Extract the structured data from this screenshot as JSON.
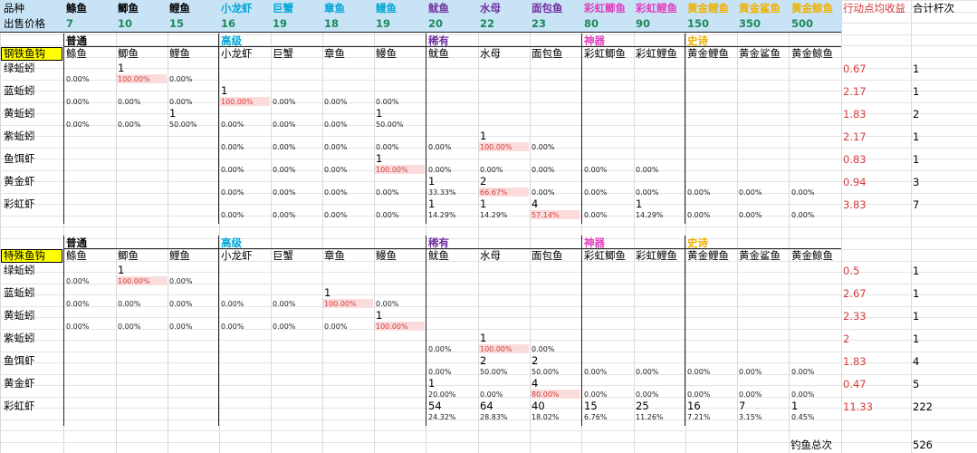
{
  "colors": {
    "normal": "#000000",
    "advanced": "#00a6d6",
    "rare": "#7030a0",
    "mythic": "#e040c0",
    "epic": "#f0b000",
    "price": "#1a8a5a",
    "ratio": "#d43b3b",
    "highlight_blue": "#c8e3f5",
    "highlight_yellow": "#ffff00",
    "pink": "#fbdcdc"
  },
  "header": {
    "row1_label": "品种",
    "row2_label": "出售价格",
    "fish": [
      {
        "name": "鲦鱼",
        "price": "7",
        "tier": "normal"
      },
      {
        "name": "鲫鱼",
        "price": "10",
        "tier": "normal"
      },
      {
        "name": "鲤鱼",
        "price": "15",
        "tier": "normal"
      },
      {
        "name": "小龙虾",
        "price": "16",
        "tier": "advanced"
      },
      {
        "name": "巨蟹",
        "price": "19",
        "tier": "advanced"
      },
      {
        "name": "章鱼",
        "price": "18",
        "tier": "advanced"
      },
      {
        "name": "鳗鱼",
        "price": "19",
        "tier": "advanced"
      },
      {
        "name": "鱿鱼",
        "price": "20",
        "tier": "rare"
      },
      {
        "name": "水母",
        "price": "22",
        "tier": "rare"
      },
      {
        "name": "面包鱼",
        "price": "23",
        "tier": "rare"
      },
      {
        "name": "彩虹鲫鱼",
        "price": "80",
        "tier": "mythic"
      },
      {
        "name": "彩虹鲤鱼",
        "price": "90",
        "tier": "mythic"
      },
      {
        "name": "黄金鲤鱼",
        "price": "150",
        "tier": "epic"
      },
      {
        "name": "黄金鲨鱼",
        "price": "350",
        "tier": "epic"
      },
      {
        "name": "黄金鲸鱼",
        "price": "500",
        "tier": "epic"
      }
    ],
    "avg_label": "行动点均收益",
    "total_label": "合计杆次"
  },
  "tiers": {
    "normal": "普通",
    "advanced": "高级",
    "rare": "稀有",
    "mythic": "神器",
    "epic": "史诗"
  },
  "sections": [
    {
      "hook": "钢铁鱼钩",
      "baits": [
        {
          "name": "绿蚯蚓",
          "ratio": "0.67",
          "total": "1",
          "counts": {
            "1": "1"
          },
          "pcts": {
            "0": "0.00%",
            "1": "100.00%",
            "2": "0.00%"
          },
          "hl": [
            1
          ]
        },
        {
          "name": "蓝蚯蚓",
          "ratio": "2.17",
          "total": "1",
          "counts": {
            "3": "1"
          },
          "pcts": {
            "0": "0.00%",
            "1": "0.00%",
            "2": "0.00%",
            "3": "100.00%",
            "4": "0.00%",
            "5": "0.00%",
            "6": "0.00%"
          },
          "hl": [
            3
          ]
        },
        {
          "name": "黄蚯蚓",
          "ratio": "1.83",
          "total": "2",
          "counts": {
            "2": "1",
            "6": "1"
          },
          "pcts": {
            "0": "0.00%",
            "1": "0.00%",
            "2": "50.00%",
            "3": "0.00%",
            "4": "0.00%",
            "5": "0.00%",
            "6": "50.00%"
          },
          "hl": []
        },
        {
          "name": "紫蚯蚓",
          "ratio": "2.17",
          "total": "1",
          "counts": {
            "8": "1"
          },
          "pcts": {
            "3": "0.00%",
            "4": "0.00%",
            "5": "0.00%",
            "6": "0.00%",
            "7": "0.00%",
            "8": "100.00%",
            "9": "0.00%"
          },
          "hl": [
            8
          ]
        },
        {
          "name": "鱼饵虾",
          "ratio": "0.83",
          "total": "1",
          "counts": {
            "6": "1"
          },
          "pcts": {
            "3": "0.00%",
            "4": "0.00%",
            "5": "0.00%",
            "6": "100.00%",
            "7": "0.00%",
            "8": "0.00%",
            "9": "0.00%",
            "10": "0.00%",
            "11": "0.00%"
          },
          "hl": [
            6
          ]
        },
        {
          "name": "黄金虾",
          "ratio": "0.94",
          "total": "3",
          "counts": {
            "7": "1",
            "8": "2"
          },
          "pcts": {
            "3": "0.00%",
            "4": "0.00%",
            "5": "0.00%",
            "6": "0.00%",
            "7": "33.33%",
            "8": "66.67%",
            "9": "0.00%",
            "10": "0.00%",
            "11": "0.00%",
            "12": "0.00%",
            "13": "0.00%",
            "14": "0.00%"
          },
          "hl": [
            8
          ]
        },
        {
          "name": "彩虹虾",
          "ratio": "3.83",
          "total": "7",
          "counts": {
            "7": "1",
            "8": "1",
            "9": "4",
            "11": "1"
          },
          "pcts": {
            "3": "0.00%",
            "4": "0.00%",
            "5": "0.00%",
            "6": "0.00%",
            "7": "14.29%",
            "8": "14.29%",
            "9": "57.14%",
            "10": "0.00%",
            "11": "14.29%",
            "12": "0.00%",
            "13": "0.00%",
            "14": "0.00%"
          },
          "hl": [
            9
          ]
        }
      ]
    },
    {
      "hook": "特殊鱼钩",
      "baits": [
        {
          "name": "绿蚯蚓",
          "ratio": "0.5",
          "total": "1",
          "counts": {
            "1": "1"
          },
          "pcts": {
            "0": "0.00%",
            "1": "100.00%",
            "2": "0.00%"
          },
          "hl": [
            1
          ]
        },
        {
          "name": "蓝蚯蚓",
          "ratio": "2.67",
          "total": "1",
          "counts": {
            "5": "1"
          },
          "pcts": {
            "0": "0.00%",
            "1": "0.00%",
            "2": "0.00%",
            "3": "0.00%",
            "4": "0.00%",
            "5": "100.00%",
            "6": "0.00%"
          },
          "hl": [
            5
          ]
        },
        {
          "name": "黄蚯蚓",
          "ratio": "2.33",
          "total": "1",
          "counts": {
            "6": "1"
          },
          "pcts": {
            "0": "0.00%",
            "1": "0.00%",
            "2": "0.00%",
            "3": "0.00%",
            "4": "0.00%",
            "5": "0.00%",
            "6": "100.00%"
          },
          "hl": [
            6
          ]
        },
        {
          "name": "紫蚯蚓",
          "ratio": "2",
          "total": "1",
          "counts": {
            "8": "1"
          },
          "pcts": {
            "7": "0.00%",
            "8": "100.00%",
            "9": "0.00%"
          },
          "hl": [
            8
          ]
        },
        {
          "name": "鱼饵虾",
          "ratio": "1.83",
          "total": "4",
          "counts": {
            "8": "2",
            "9": "2"
          },
          "pcts": {
            "7": "0.00%",
            "8": "50.00%",
            "9": "50.00%",
            "10": "0.00%",
            "11": "0.00%",
            "12": "0.00%",
            "13": "0.00%",
            "14": "0.00%"
          },
          "hl": []
        },
        {
          "name": "黄金虾",
          "ratio": "0.47",
          "total": "5",
          "counts": {
            "7": "1",
            "9": "4"
          },
          "pcts": {
            "7": "20.00%",
            "8": "0.00%",
            "9": "80.00%",
            "10": "0.00%",
            "11": "0.00%",
            "12": "0.00%",
            "13": "0.00%",
            "14": "0.00%"
          },
          "hl": [
            9
          ]
        },
        {
          "name": "彩虹虾",
          "ratio": "11.33",
          "total": "222",
          "counts": {
            "7": "54",
            "8": "64",
            "9": "40",
            "10": "15",
            "11": "25",
            "12": "16",
            "13": "7",
            "14": "1"
          },
          "pcts": {
            "7": "24.32%",
            "8": "28.83%",
            "9": "18.02%",
            "10": "6.76%",
            "11": "11.26%",
            "12": "7.21%",
            "13": "3.15%",
            "14": "0.45%"
          },
          "hl": []
        }
      ]
    }
  ],
  "footer": {
    "label": "钓鱼总次",
    "value": "526"
  }
}
